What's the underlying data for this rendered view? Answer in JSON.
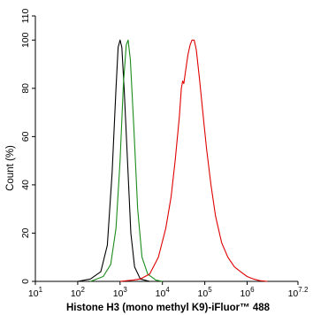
{
  "chart_data": {
    "type": "line",
    "xlabel": "Histone H3 (mono methyl K9)-iFluor™ 488",
    "ylabel": "Count  (%)",
    "x_scale": "log",
    "xlim": [
      10,
      15848932
    ],
    "ylim": [
      0,
      110
    ],
    "grid": false,
    "x_ticks": [
      {
        "value": 10,
        "base": "10",
        "exp": "1"
      },
      {
        "value": 100,
        "base": "10",
        "exp": "2"
      },
      {
        "value": 1000,
        "base": "10",
        "exp": "3"
      },
      {
        "value": 10000,
        "base": "10",
        "exp": "4"
      },
      {
        "value": 100000,
        "base": "10",
        "exp": "5"
      },
      {
        "value": 1000000,
        "base": "10",
        "exp": "6"
      },
      {
        "value": 15848932,
        "base": "10",
        "exp": "7.2"
      }
    ],
    "y_ticks": [
      0,
      20,
      40,
      60,
      80,
      100,
      110
    ],
    "series": [
      {
        "color": "#000000",
        "points": [
          [
            100,
            0
          ],
          [
            200,
            1
          ],
          [
            350,
            4
          ],
          [
            500,
            15
          ],
          [
            650,
            45
          ],
          [
            800,
            80
          ],
          [
            900,
            97
          ],
          [
            1000,
            100
          ],
          [
            1100,
            97
          ],
          [
            1250,
            80
          ],
          [
            1500,
            50
          ],
          [
            1800,
            20
          ],
          [
            2200,
            6
          ],
          [
            3000,
            1
          ],
          [
            5000,
            0
          ]
        ]
      },
      {
        "color": "#1a8c1a",
        "points": [
          [
            200,
            0
          ],
          [
            400,
            2
          ],
          [
            600,
            7
          ],
          [
            800,
            22
          ],
          [
            1000,
            50
          ],
          [
            1200,
            82
          ],
          [
            1400,
            98
          ],
          [
            1550,
            100
          ],
          [
            1750,
            92
          ],
          [
            2100,
            65
          ],
          [
            2600,
            30
          ],
          [
            3300,
            10
          ],
          [
            4500,
            3
          ],
          [
            7000,
            0.5
          ],
          [
            10000,
            0
          ]
        ]
      },
      {
        "color": "#e00000",
        "points": [
          [
            1000,
            0
          ],
          [
            2000,
            0.5
          ],
          [
            3000,
            1
          ],
          [
            5000,
            3
          ],
          [
            8000,
            10
          ],
          [
            12000,
            22
          ],
          [
            16000,
            35
          ],
          [
            20000,
            50
          ],
          [
            25000,
            68
          ],
          [
            28000,
            80
          ],
          [
            30000,
            83
          ],
          [
            32000,
            82
          ],
          [
            35000,
            87
          ],
          [
            40000,
            94
          ],
          [
            45000,
            98
          ],
          [
            50000,
            100
          ],
          [
            56000,
            100
          ],
          [
            63000,
            96
          ],
          [
            75000,
            84
          ],
          [
            90000,
            70
          ],
          [
            110000,
            55
          ],
          [
            140000,
            40
          ],
          [
            180000,
            27
          ],
          [
            250000,
            16
          ],
          [
            350000,
            10
          ],
          [
            500000,
            6
          ],
          [
            700000,
            4
          ],
          [
            1000000,
            2
          ],
          [
            1400000,
            1
          ],
          [
            2000000,
            0.3
          ],
          [
            3000000,
            0
          ]
        ]
      }
    ]
  }
}
